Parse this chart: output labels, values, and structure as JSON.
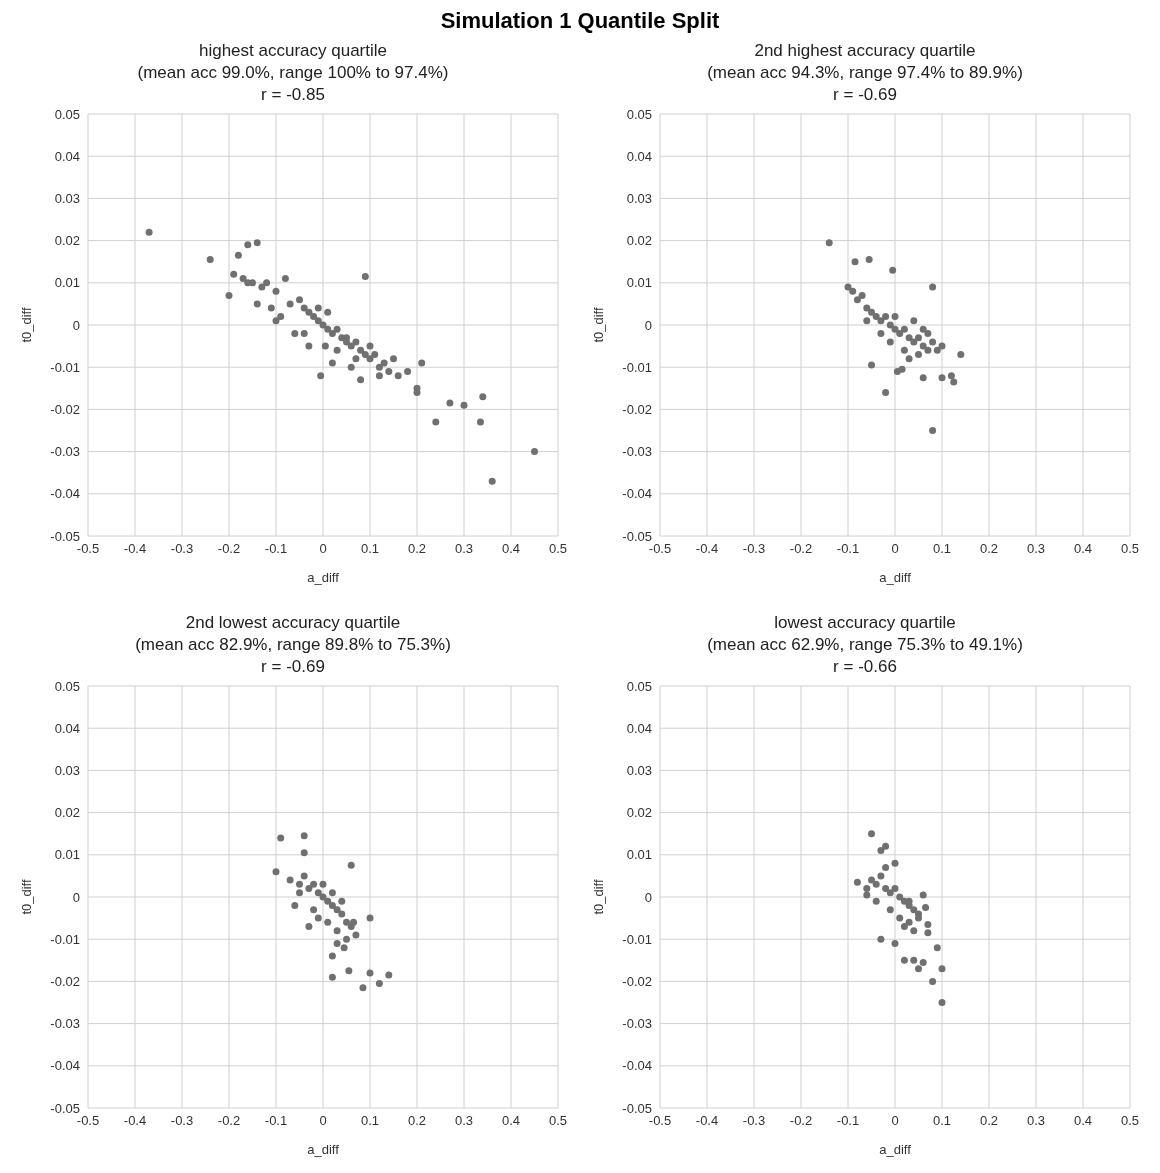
{
  "chart_data": [
    {
      "type": "scatter",
      "title": "highest accuracy quartile",
      "subtitle": "(mean acc 99.0%, range 100% to 97.4%)",
      "annotations": [
        "Simulation 1 Quantile Split",
        "r = -0.85"
      ],
      "xlabel": "a_diff",
      "ylabel": "t0_diff",
      "xlim": [
        -0.5,
        0.5
      ],
      "xticks": [
        -0.5,
        -0.4,
        -0.3,
        -0.2,
        -0.1,
        0,
        0.1,
        0.2,
        0.3,
        0.4,
        0.5
      ],
      "ylim": [
        -0.05,
        0.05
      ],
      "yticks": [
        -0.05,
        -0.04,
        -0.03,
        -0.02,
        -0.01,
        0,
        0.01,
        0.02,
        0.03,
        0.04,
        0.05
      ],
      "grid": true,
      "legend": false,
      "marker": "circle",
      "series": [
        {
          "color": "#707070",
          "x": [
            -0.37,
            -0.24,
            -0.2,
            -0.19,
            -0.18,
            -0.16,
            -0.14,
            0.09,
            0.21,
            0.2,
            0.2,
            0.24,
            0.27,
            0.3,
            0.34,
            0.335,
            0.36,
            0.45,
            -0.17,
            -0.15,
            -0.13,
            -0.12,
            -0.1,
            -0.08,
            -0.07,
            -0.05,
            -0.04,
            -0.03,
            -0.02,
            -0.01,
            0,
            0.01,
            0.02,
            0.03,
            0.04,
            0.05,
            0.06,
            0.07,
            0.08,
            0.09,
            0.1,
            0.11,
            0.12,
            0.13,
            0.14,
            0.16,
            0.18,
            -0.14,
            -0.11,
            -0.09,
            -0.06,
            -0.03,
            -0.01,
            0.01,
            0.03,
            0.05,
            0.07,
            0.1,
            0.12,
            -0.1,
            -0.04,
            0.02,
            0.06,
            0.08,
            -0.005,
            0.005,
            -0.16,
            0.15
          ],
          "values": [
            0.022,
            0.0155,
            0.007,
            0.012,
            0.0165,
            0.019,
            0.0195,
            0.0115,
            -0.009,
            -0.015,
            -0.016,
            -0.023,
            -0.0185,
            -0.019,
            -0.017,
            -0.023,
            -0.037,
            -0.03,
            0.011,
            0.01,
            0.009,
            0.01,
            0.008,
            0.011,
            0.005,
            0.006,
            0.004,
            0.003,
            0.002,
            0.001,
            0,
            -0.001,
            -0.002,
            -0.001,
            -0.003,
            -0.004,
            -0.005,
            -0.004,
            -0.006,
            -0.007,
            -0.008,
            -0.007,
            -0.01,
            -0.009,
            -0.011,
            -0.012,
            -0.011,
            0.005,
            0.004,
            0.002,
            -0.002,
            -0.005,
            0.004,
            0.003,
            -0.006,
            -0.003,
            -0.008,
            -0.005,
            -0.012,
            0.001,
            -0.002,
            -0.009,
            -0.01,
            -0.013,
            -0.012,
            -0.005,
            0.01,
            -0.008
          ]
        }
      ]
    },
    {
      "type": "scatter",
      "title": "2nd highest accuracy quartile",
      "subtitle": "(mean acc 94.3%, range 97.4% to 89.9%)",
      "annotations": [
        "r = -0.69"
      ],
      "xlabel": "a_diff",
      "ylabel": "t0_diff",
      "xlim": [
        -0.5,
        0.5
      ],
      "xticks": [
        -0.5,
        -0.4,
        -0.3,
        -0.2,
        -0.1,
        0,
        0.1,
        0.2,
        0.3,
        0.4,
        0.5
      ],
      "ylim": [
        -0.05,
        0.05
      ],
      "yticks": [
        -0.05,
        -0.04,
        -0.03,
        -0.02,
        -0.01,
        0,
        0.01,
        0.02,
        0.03,
        0.04,
        0.05
      ],
      "grid": true,
      "legend": false,
      "marker": "circle",
      "series": [
        {
          "color": "#707070",
          "x": [
            -0.14,
            -0.085,
            -0.055,
            -0.005,
            0.08,
            -0.02,
            0.08,
            0.14,
            0.12,
            0.125,
            0.06,
            0.1,
            -0.05,
            0.005,
            0.015,
            -0.1,
            -0.09,
            -0.08,
            -0.07,
            -0.06,
            -0.05,
            -0.04,
            -0.03,
            -0.02,
            -0.01,
            0,
            0.01,
            0.02,
            0.03,
            0.04,
            0.05,
            0.06,
            0.07,
            0.08,
            0.09,
            0.1,
            -0.06,
            -0.03,
            0,
            0.02,
            0.04,
            0.06,
            0.03,
            -0.01,
            0.05,
            0.07
          ],
          "values": [
            0.0195,
            0.015,
            0.0155,
            0.013,
            0.009,
            -0.016,
            -0.025,
            -0.007,
            -0.012,
            -0.0135,
            -0.0125,
            -0.0125,
            -0.0095,
            -0.011,
            -0.0105,
            0.009,
            0.008,
            0.006,
            0.007,
            0.004,
            0.003,
            0.002,
            0.001,
            0.002,
            0,
            -0.001,
            -0.002,
            -0.001,
            -0.003,
            -0.004,
            -0.003,
            -0.005,
            -0.006,
            -0.004,
            -0.006,
            -0.005,
            0.001,
            -0.002,
            0.002,
            -0.006,
            0.001,
            -0.001,
            -0.008,
            -0.004,
            -0.007,
            -0.002
          ]
        }
      ]
    },
    {
      "type": "scatter",
      "title": "2nd lowest accuracy quartile",
      "subtitle": "(mean acc 82.9%, range 89.8% to 75.3%)",
      "annotations": [
        "r = -0.69"
      ],
      "xlabel": "a_diff",
      "ylabel": "t0_diff",
      "xlim": [
        -0.5,
        0.5
      ],
      "xticks": [
        -0.5,
        -0.4,
        -0.3,
        -0.2,
        -0.1,
        0,
        0.1,
        0.2,
        0.3,
        0.4,
        0.5
      ],
      "ylim": [
        -0.05,
        0.05
      ],
      "yticks": [
        -0.05,
        -0.04,
        -0.03,
        -0.02,
        -0.01,
        0,
        0.01,
        0.02,
        0.03,
        0.04,
        0.05
      ],
      "grid": true,
      "legend": false,
      "marker": "circle",
      "series": [
        {
          "color": "#707070",
          "x": [
            -0.09,
            -0.04,
            -0.04,
            0.06,
            0.1,
            0.02,
            0.02,
            0.055,
            0.085,
            0.1,
            0.12,
            0.14,
            -0.1,
            -0.06,
            -0.07,
            -0.05,
            -0.04,
            -0.03,
            -0.02,
            -0.01,
            0,
            0.01,
            0.02,
            0.03,
            0.04,
            0.05,
            0.06,
            0.07,
            -0.05,
            -0.02,
            0,
            0.02,
            0.04,
            -0.01,
            0.01,
            0.03,
            0.05,
            0.065,
            0.03,
            0.045,
            -0.03
          ],
          "values": [
            0.014,
            0.0145,
            0.0105,
            0.0075,
            -0.005,
            -0.014,
            -0.019,
            -0.0175,
            -0.0215,
            -0.018,
            -0.0205,
            -0.0185,
            0.006,
            -0.002,
            0.004,
            0.003,
            0.005,
            0.002,
            0.003,
            0.001,
            0,
            -0.001,
            -0.002,
            -0.003,
            -0.004,
            -0.006,
            -0.007,
            -0.009,
            0.001,
            -0.003,
            0.003,
            0.001,
            -0.001,
            -0.005,
            -0.006,
            -0.008,
            -0.01,
            -0.006,
            -0.011,
            -0.012,
            -0.007
          ]
        }
      ]
    },
    {
      "type": "scatter",
      "title": "lowest accuracy quartile",
      "subtitle": "(mean acc 62.9%, range 75.3% to 49.1%)",
      "annotations": [
        "r = -0.66"
      ],
      "xlabel": "a_diff",
      "ylabel": "t0_diff",
      "xlim": [
        -0.5,
        0.5
      ],
      "xticks": [
        -0.5,
        -0.4,
        -0.3,
        -0.2,
        -0.1,
        0,
        0.1,
        0.2,
        0.3,
        0.4,
        0.5
      ],
      "ylim": [
        -0.05,
        0.05
      ],
      "yticks": [
        -0.05,
        -0.04,
        -0.03,
        -0.02,
        -0.01,
        0,
        0.01,
        0.02,
        0.03,
        0.04,
        0.05
      ],
      "grid": true,
      "legend": false,
      "marker": "circle",
      "series": [
        {
          "color": "#707070",
          "x": [
            -0.05,
            -0.02,
            -0.03,
            -0.08,
            0.06,
            -0.03,
            0,
            0.02,
            0.04,
            0.1,
            0.08,
            0.1,
            0.09,
            0.05,
            0.06,
            0.07,
            0.065,
            0.07,
            -0.06,
            -0.05,
            -0.04,
            -0.03,
            -0.02,
            -0.01,
            0,
            0.01,
            0.02,
            0.03,
            0.04,
            0.05,
            -0.04,
            -0.01,
            0.01,
            0.03,
            0.02,
            0.04,
            -0.02,
            0.0,
            0.03,
            0.05,
            -0.06
          ],
          "values": [
            0.015,
            0.012,
            0.011,
            0.0035,
            0.0005,
            -0.01,
            -0.011,
            -0.015,
            -0.015,
            -0.017,
            -0.02,
            -0.025,
            -0.012,
            -0.017,
            -0.0155,
            -0.0085,
            -0.0025,
            -0.0065,
            0.002,
            0.004,
            0.003,
            0.005,
            0.002,
            0.001,
            0.002,
            0,
            -0.001,
            -0.002,
            -0.003,
            -0.004,
            -0.001,
            -0.003,
            -0.005,
            -0.006,
            -0.007,
            -0.008,
            0.007,
            0.008,
            -0.001,
            -0.005,
            0.0005
          ]
        }
      ]
    }
  ]
}
